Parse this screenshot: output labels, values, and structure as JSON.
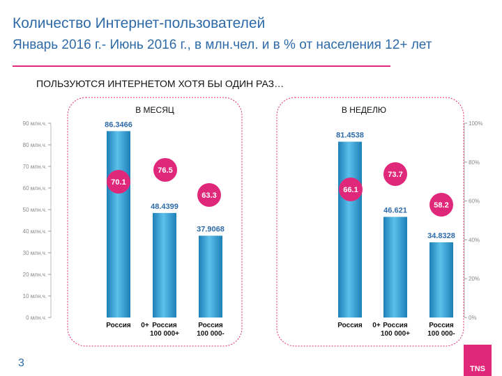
{
  "header": {
    "title": "Количество Интернет-пользователей",
    "subtitle": "Январь 2016 г.- Июнь 2016 г., в млн.чел. и в % от населения 12+ лет"
  },
  "section_heading": "ПОЛЬЗУЮТСЯ ИНТЕРНЕТОМ ХОТЯ БЫ ОДИН РАЗ…",
  "page_number": "3",
  "logo_text": "TNS",
  "colors": {
    "accent": "#e0287a",
    "title": "#2e6aa8",
    "bar": "#3aa6d6",
    "label": "#2e6aa8"
  },
  "chart_data": [
    {
      "type": "bar",
      "title": "В МЕСЯЦ",
      "categories": [
        "Россия 0+",
        "Россия 100 000+",
        "Россия 100 000-"
      ],
      "values": [
        86.3466,
        48.4399,
        37.9068
      ],
      "value_labels": [
        "86.3466",
        "48.4399",
        "37.9068"
      ],
      "percent_values": [
        70.1,
        76.5,
        63.3
      ],
      "ylim": [
        0,
        90
      ],
      "y_ticks": [
        "0 млн.ч.",
        "10 млн.ч.",
        "20 млн.ч.",
        "30 млн.ч.",
        "40 млн.ч.",
        "50 млн.ч.",
        "60 млн.ч.",
        "70 млн.ч.",
        "80 млн.ч.",
        "90 млн.ч."
      ]
    },
    {
      "type": "bar",
      "title": "В НЕДЕЛЮ",
      "categories": [
        "Россия 0+",
        "Россия 100 000+",
        "Россия 100 000-"
      ],
      "values": [
        81.4538,
        46.621,
        34.8328
      ],
      "value_labels": [
        "81.4538",
        "46.621",
        "34.8328"
      ],
      "percent_values": [
        66.1,
        73.7,
        58.2
      ],
      "ylim": [
        0,
        100
      ],
      "y_ticks": [
        "0%",
        "20%",
        "40%",
        "60%",
        "80%",
        "100%"
      ]
    }
  ]
}
